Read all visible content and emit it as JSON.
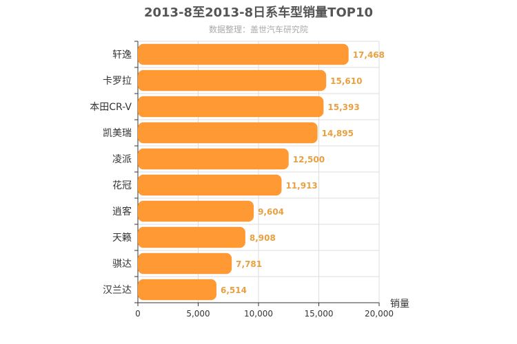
{
  "chart_data": {
    "type": "bar",
    "orientation": "horizontal",
    "title": "2013-8至2013-8日系车型销量TOP10",
    "subtitle": "数据整理：盖世汽车研究院",
    "xlabel": "销量",
    "ylabel": "",
    "categories": [
      "轩逸",
      "卡罗拉",
      "本田CR-V",
      "凯美瑞",
      "凌派",
      "花冠",
      "逍客",
      "天籁",
      "骐达",
      "汉兰达"
    ],
    "values": [
      17468,
      15610,
      15393,
      14895,
      12500,
      11913,
      9604,
      8908,
      7781,
      6514
    ],
    "value_labels": [
      "17,468",
      "15,610",
      "15,393",
      "14,895",
      "12,500",
      "11,913",
      "9,604",
      "8,908",
      "7,781",
      "6,514"
    ],
    "xlim": [
      0,
      20000
    ],
    "x_ticks": [
      0,
      5000,
      10000,
      15000,
      20000
    ],
    "x_tick_labels": [
      "0",
      "5,000",
      "10,000",
      "15,000",
      "20,000"
    ],
    "grid": true,
    "legend": "none",
    "bar_color": "#ff9933",
    "label_color": "#e8a040"
  }
}
